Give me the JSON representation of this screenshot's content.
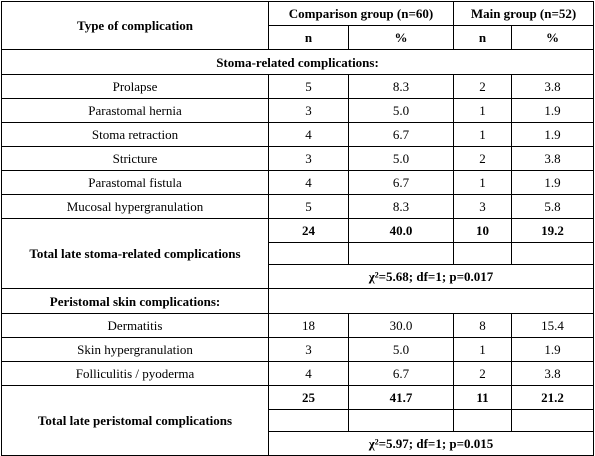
{
  "header": {
    "col_type": "Type of complication",
    "comparison": "Comparison group (n=60)",
    "main": "Main group (n=52)",
    "n": "n",
    "pct": "%"
  },
  "sections": [
    {
      "title": "Stoma-related complications:",
      "rows": [
        {
          "name": "Prolapse",
          "cn": "5",
          "cp": "8.3",
          "mn": "2",
          "mp": "3.8"
        },
        {
          "name": "Parastomal hernia",
          "cn": "3",
          "cp": "5.0",
          "mn": "1",
          "mp": "1.9"
        },
        {
          "name": "Stoma retraction",
          "cn": "4",
          "cp": "6.7",
          "mn": "1",
          "mp": "1.9"
        },
        {
          "name": "Stricture",
          "cn": "3",
          "cp": "5.0",
          "mn": "2",
          "mp": "3.8"
        },
        {
          "name": "Parastomal fistula",
          "cn": "4",
          "cp": "6.7",
          "mn": "1",
          "mp": "1.9"
        },
        {
          "name": "Mucosal hypergranulation",
          "cn": "5",
          "cp": "8.3",
          "mn": "3",
          "mp": "5.8"
        }
      ],
      "total": {
        "label": "Total late stoma-related complications",
        "cn": "24",
        "cp": "40.0",
        "mn": "10",
        "mp": "19.2"
      },
      "stat": "χ²=5.68; df=1; p=0.017"
    },
    {
      "title": "Peristomal skin complications:",
      "rows": [
        {
          "name": "Dermatitis",
          "cn": "18",
          "cp": "30.0",
          "mn": "8",
          "mp": "15.4"
        },
        {
          "name": "Skin hypergranulation",
          "cn": "3",
          "cp": "5.0",
          "mn": "1",
          "mp": "1.9"
        },
        {
          "name": "Folliculitis / pyoderma",
          "cn": "4",
          "cp": "6.7",
          "mn": "2",
          "mp": "3.8"
        }
      ],
      "total": {
        "label": "Total late peristomal complications",
        "cn": "25",
        "cp": "41.7",
        "mn": "11",
        "mp": "21.2"
      },
      "stat": "χ²=5.97; df=1; p=0.015"
    }
  ]
}
